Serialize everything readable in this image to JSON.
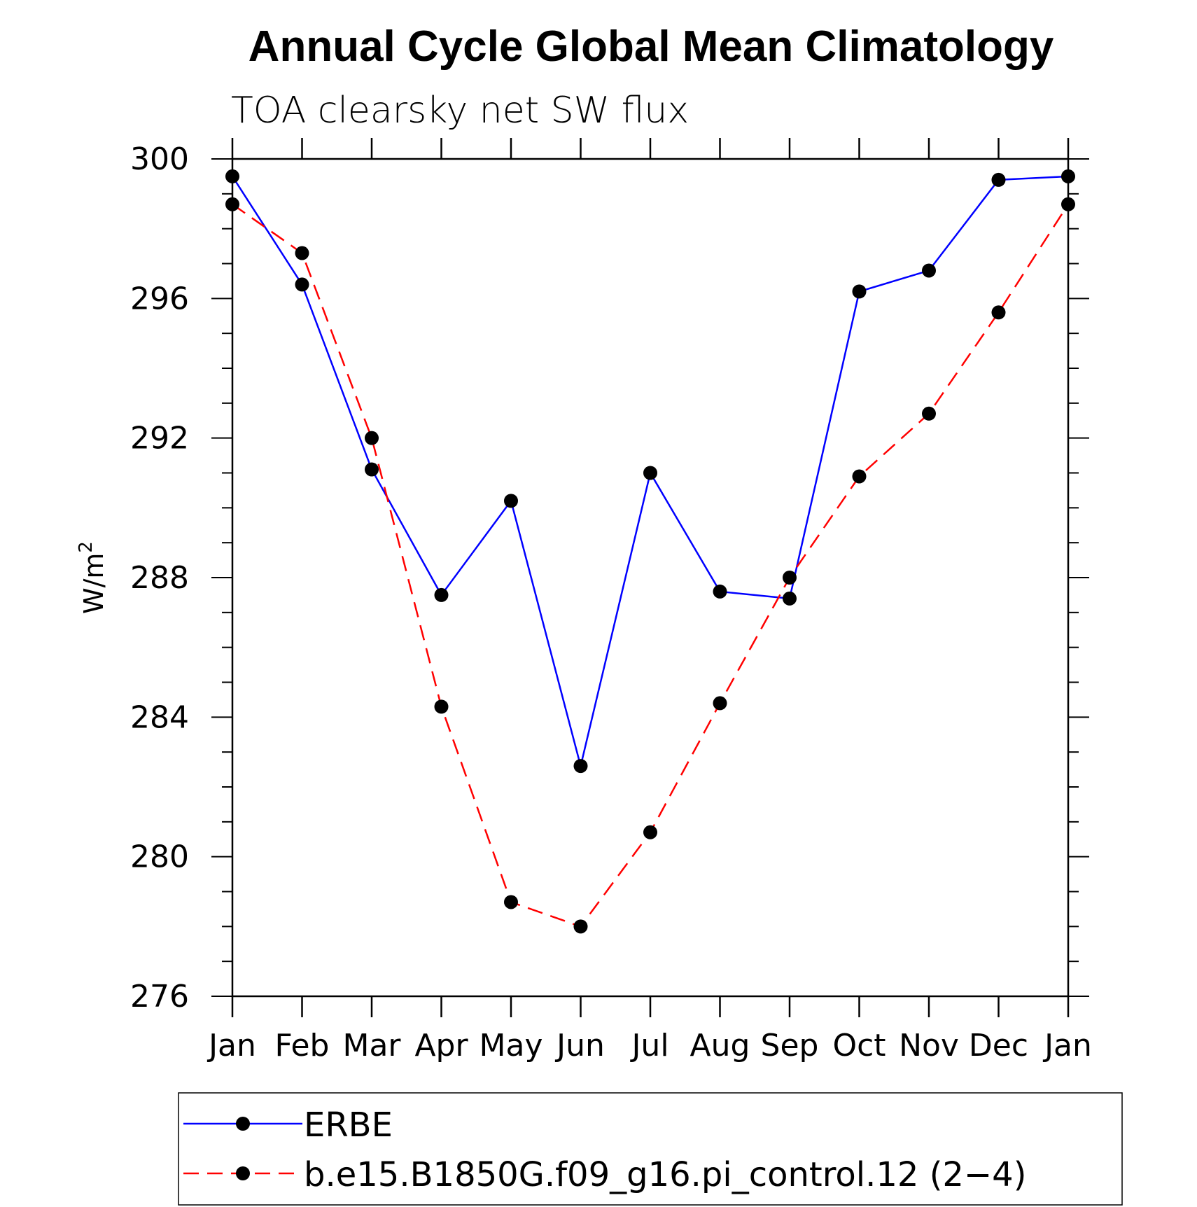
{
  "chart_data": {
    "type": "line",
    "title": "Annual Cycle Global Mean Climatology",
    "subtitle": "TOA clearsky net SW flux",
    "ylabel_base": "W/m",
    "ylabel_sup": "2",
    "xlabel": "",
    "categories": [
      "Jan",
      "Feb",
      "Mar",
      "Apr",
      "May",
      "Jun",
      "Jul",
      "Aug",
      "Sep",
      "Oct",
      "Nov",
      "Dec",
      "Jan"
    ],
    "ylim": [
      276,
      300
    ],
    "yticks": [
      276,
      280,
      284,
      288,
      292,
      296,
      300
    ],
    "series": [
      {
        "name": "ERBE",
        "color": "#0000ff",
        "dash": "solid",
        "marker": "filled-circle",
        "values": [
          299.5,
          296.4,
          291.1,
          287.5,
          290.2,
          282.6,
          291.0,
          287.6,
          287.4,
          296.2,
          296.8,
          299.4,
          299.5
        ]
      },
      {
        "name": "b.e15.B1850G.f09_g16.pi_control.12 (2−4)",
        "color": "#ff0000",
        "dash": "dashed",
        "marker": "filled-circle",
        "values": [
          298.7,
          297.3,
          292.0,
          284.3,
          278.7,
          278.0,
          280.7,
          284.4,
          288.0,
          290.9,
          292.7,
          295.6,
          298.7
        ]
      }
    ],
    "legend_position": "bottom",
    "grid": false
  }
}
